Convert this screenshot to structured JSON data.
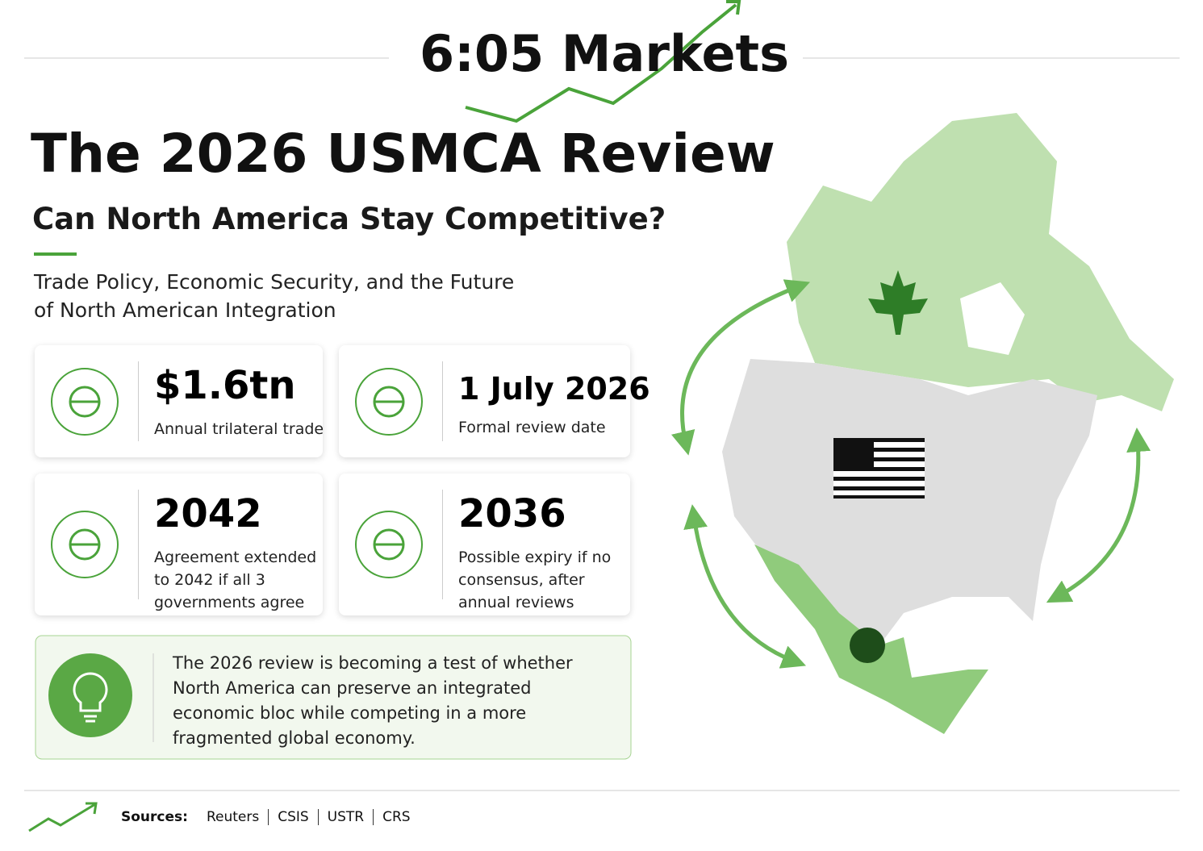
{
  "brand": "6:05 Markets",
  "title": "The 2026 USMCA Review",
  "subtitle": "Can North America Stay Competitive?",
  "description": [
    "Trade Policy, Economic Security, and the Future",
    "of North American Integration"
  ],
  "stats": [
    {
      "value": "$1.6tn",
      "label": [
        "Annual trilateral trade"
      ]
    },
    {
      "value": "1 July 2026",
      "label": [
        "Formal review date"
      ]
    },
    {
      "value": "2042",
      "label": [
        "Agreement extended",
        "to 2042 if all 3",
        "governments agree"
      ]
    },
    {
      "value": "2036",
      "label": [
        "Possible expiry if no",
        "consensus, after",
        "annual reviews"
      ]
    }
  ],
  "insight": [
    "The 2026 review is becoming a test of whether",
    "North America can preserve an integrated",
    "economic bloc while competing in a more",
    "fragmented global economy."
  ],
  "sources": {
    "label": "Sources:",
    "items": [
      "Reuters",
      "CSIS",
      "USTR",
      "CRS"
    ]
  }
}
